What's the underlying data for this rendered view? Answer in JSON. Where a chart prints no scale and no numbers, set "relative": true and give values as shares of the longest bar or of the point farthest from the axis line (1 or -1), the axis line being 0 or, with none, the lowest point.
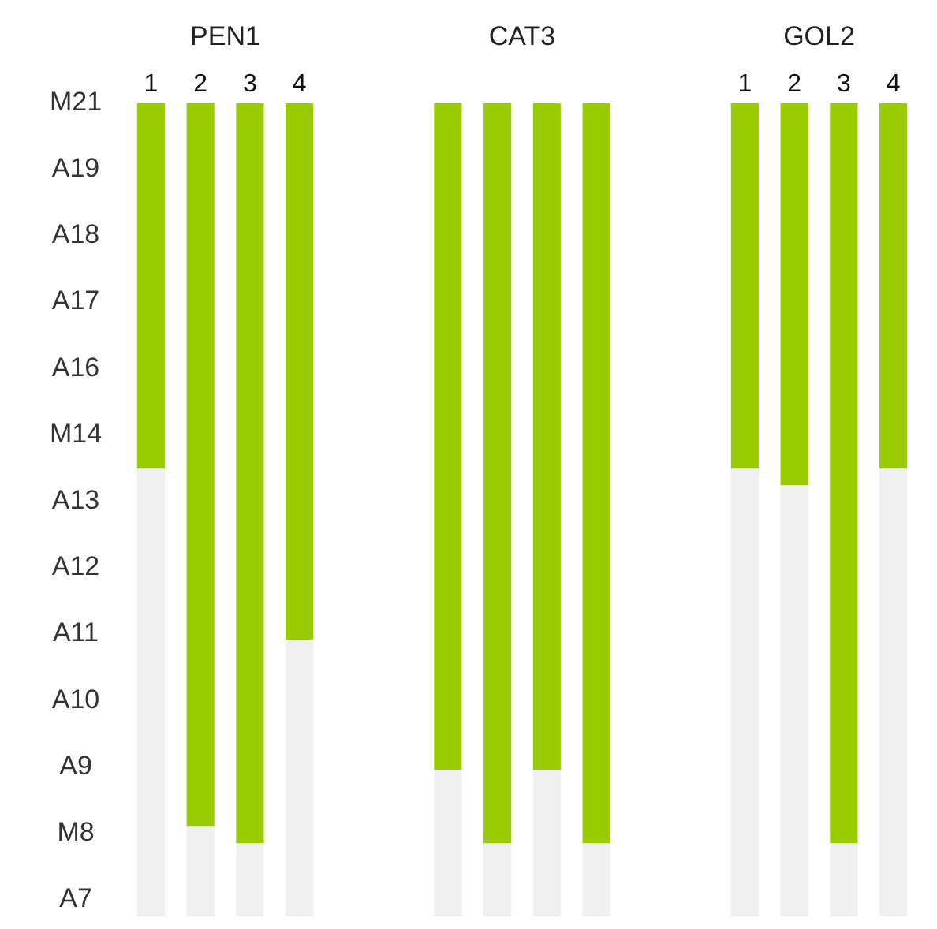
{
  "chart_data": {
    "type": "bar",
    "relative": true,
    "stacked": true,
    "annotations": [
      "PEN1",
      "CAT3",
      "GOL2",
      "M21",
      "A19",
      "A18",
      "A17",
      "A16",
      "M14",
      "A13",
      "A12",
      "A11",
      "A10",
      "A9",
      "M8",
      "A7"
    ],
    "categories": [
      "1",
      "2",
      "3",
      "4",
      null,
      null,
      null,
      null,
      null,
      null,
      null,
      null,
      "1",
      "2",
      "3",
      "4"
    ],
    "series": [
      {
        "color": "#f0f0f0",
        "values": [
          0.55,
          0.11,
          0.09,
          0.34,
          null,
          null,
          0.18,
          0.09,
          0.18,
          0.09,
          null,
          null,
          0.55,
          0.53,
          0.09,
          0.55
        ]
      },
      {
        "color": "#99cc00",
        "values": [
          0.45,
          0.89,
          0.91,
          0.66,
          null,
          null,
          0.82,
          0.91,
          0.82,
          0.91,
          null,
          null,
          0.45,
          0.47,
          0.91,
          0.45
        ]
      }
    ],
    "grid": false,
    "legend": false
  }
}
